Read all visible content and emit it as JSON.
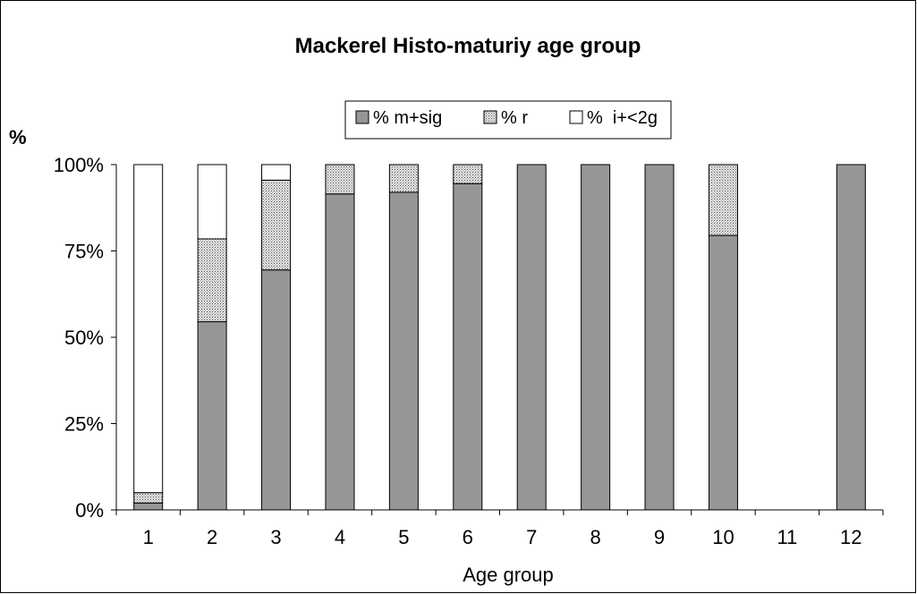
{
  "chart_data": {
    "type": "bar",
    "stacked": true,
    "title": "Mackerel Histo-maturiy age group",
    "xlabel": "Age group",
    "ylabel": "%",
    "ylim": [
      0,
      100
    ],
    "yticks": [
      "0%",
      "25%",
      "50%",
      "75%",
      "100%"
    ],
    "categories": [
      "1",
      "2",
      "3",
      "4",
      "5",
      "6",
      "7",
      "8",
      "9",
      "10",
      "11",
      "12"
    ],
    "series": [
      {
        "name": "% m+sig",
        "color": "#969696",
        "pattern": "solid",
        "values": [
          2,
          54.5,
          69.5,
          91.5,
          92,
          94.5,
          100,
          100,
          100,
          79.5,
          0,
          100
        ]
      },
      {
        "name": "% r",
        "color": "#c8c8c8",
        "pattern": "dotted",
        "values": [
          3,
          24,
          26,
          8.5,
          8,
          5.5,
          0,
          0,
          0,
          20.5,
          0,
          0
        ]
      },
      {
        "name": "%  i+<2g",
        "color": "#ffffff",
        "pattern": "none",
        "values": [
          95,
          21.5,
          4.5,
          0,
          0,
          0,
          0,
          0,
          0,
          0,
          0,
          0
        ]
      }
    ],
    "legend_position": "top-center",
    "grid": false
  }
}
